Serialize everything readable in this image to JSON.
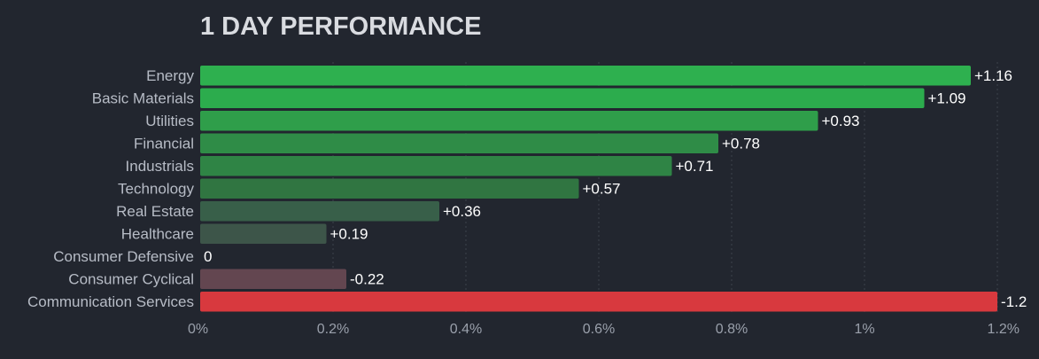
{
  "title": "1 DAY PERFORMANCE",
  "chart_data": {
    "type": "bar",
    "orientation": "horizontal",
    "title": "1 DAY PERFORMANCE",
    "categories": [
      "Energy",
      "Basic Materials",
      "Utilities",
      "Financial",
      "Industrials",
      "Technology",
      "Real Estate",
      "Healthcare",
      "Consumer Defensive",
      "Consumer Cyclical",
      "Communication Services"
    ],
    "values": [
      1.16,
      1.09,
      0.93,
      0.78,
      0.71,
      0.57,
      0.36,
      0.19,
      0,
      -0.22,
      -1.2
    ],
    "value_labels": [
      "+1.16",
      "+1.09",
      "+0.93",
      "+0.78",
      "+0.71",
      "+0.57",
      "+0.36",
      "+0.19",
      "0",
      "-0.22",
      "-1.2"
    ],
    "bar_colors": [
      "#2eb04f",
      "#2cac4d",
      "#2f9e4a",
      "#2f8c47",
      "#2f8445",
      "#307541",
      "#385f49",
      "#3d5549",
      "#3d5549",
      "#634650",
      "#d8393e"
    ],
    "xlim": [
      0,
      1.2
    ],
    "x_scale": "absolute value",
    "x_ticks": [
      0,
      0.2,
      0.4,
      0.6,
      0.8,
      1.0,
      1.2
    ],
    "x_tick_labels": [
      "0%",
      "0.2%",
      "0.4%",
      "0.6%",
      "0.8%",
      "1%",
      "1.2%"
    ],
    "grid": "vertical dashed",
    "legend": "none"
  },
  "colors": {
    "background": "#22262f",
    "positive": "#2eb04f",
    "negative": "#d8393e"
  }
}
